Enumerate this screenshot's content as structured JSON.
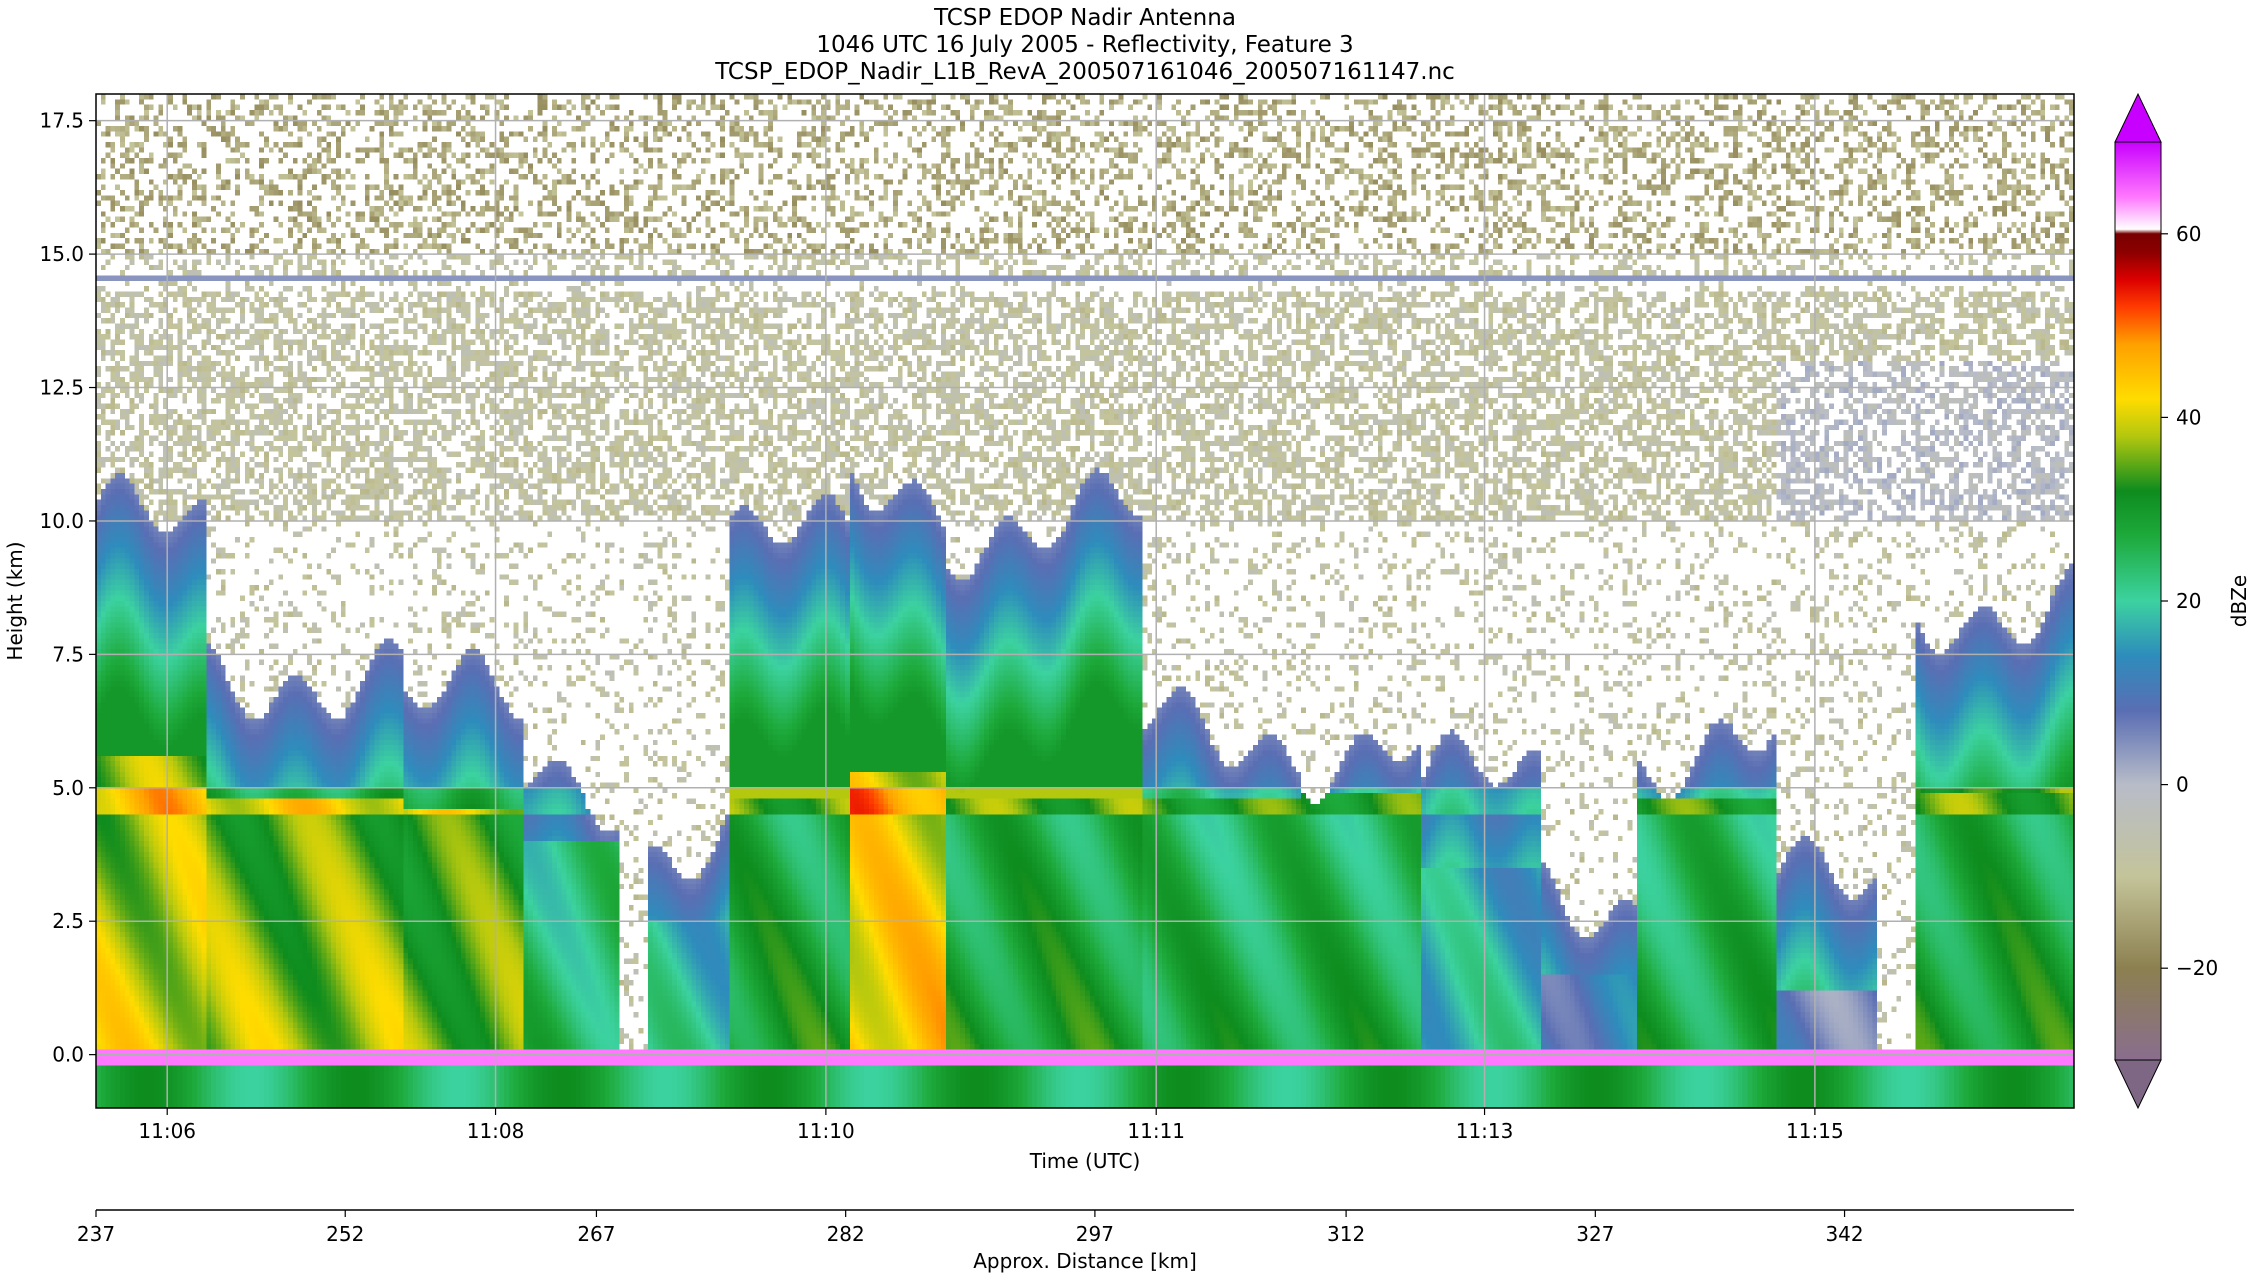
{
  "chart_data": {
    "type": "heatmap",
    "title_lines": [
      "TCSP EDOP Nadir Antenna",
      "1046 UTC 16 July 2005 - Reflectivity, Feature 3",
      "TCSP_EDOP_Nadir_L1B_RevA_200507161046_200507161147.nc"
    ],
    "xlabel": "Time (UTC)",
    "ylabel": "Height (km)",
    "xlabel2": "Approx. Distance [km]",
    "colorbar_label": "dBZe",
    "ylim": [
      -1.0,
      18.0
    ],
    "grid": true,
    "y_ticks": [
      {
        "value": 0.0,
        "label": "0.0"
      },
      {
        "value": 2.5,
        "label": "2.5"
      },
      {
        "value": 5.0,
        "label": "5.0"
      },
      {
        "value": 7.5,
        "label": "7.5"
      },
      {
        "value": 10.0,
        "label": "10.0"
      },
      {
        "value": 12.5,
        "label": "12.5"
      },
      {
        "value": 15.0,
        "label": "15.0"
      },
      {
        "value": 17.5,
        "label": "17.5"
      }
    ],
    "x_ticks": [
      {
        "value": 0.036,
        "label": "11:06"
      },
      {
        "value": 0.202,
        "label": "11:08"
      },
      {
        "value": 0.369,
        "label": "11:10"
      },
      {
        "value": 0.536,
        "label": "11:11"
      },
      {
        "value": 0.702,
        "label": "11:13"
      },
      {
        "value": 0.869,
        "label": "11:15"
      }
    ],
    "x2_ticks": [
      {
        "value": 0.0,
        "label": "237"
      },
      {
        "value": 0.126,
        "label": "252"
      },
      {
        "value": 0.253,
        "label": "267"
      },
      {
        "value": 0.379,
        "label": "282"
      },
      {
        "value": 0.505,
        "label": "297"
      },
      {
        "value": 0.632,
        "label": "312"
      },
      {
        "value": 0.758,
        "label": "327"
      },
      {
        "value": 0.884,
        "label": "342"
      }
    ],
    "colorbar": {
      "range": [
        -30,
        70
      ],
      "ticks": [
        {
          "value": -20,
          "label": "−20"
        },
        {
          "value": 0,
          "label": "0"
        },
        {
          "value": 20,
          "label": "20"
        },
        {
          "value": 40,
          "label": "40"
        },
        {
          "value": 60,
          "label": "60"
        }
      ],
      "stops": [
        {
          "value": -30,
          "color": "#8a6e8e"
        },
        {
          "value": -20,
          "color": "#8c8050"
        },
        {
          "value": -10,
          "color": "#c4c49a"
        },
        {
          "value": 0,
          "color": "#b8bcc8"
        },
        {
          "value": 8,
          "color": "#5a6eb4"
        },
        {
          "value": 14,
          "color": "#2e8cbc"
        },
        {
          "value": 20,
          "color": "#3cd2a0"
        },
        {
          "value": 27,
          "color": "#1eaa3c"
        },
        {
          "value": 32,
          "color": "#0e8c1e"
        },
        {
          "value": 38,
          "color": "#b4c80e"
        },
        {
          "value": 42,
          "color": "#ffdc00"
        },
        {
          "value": 48,
          "color": "#ffa000"
        },
        {
          "value": 52,
          "color": "#ff3c00"
        },
        {
          "value": 55,
          "color": "#dc0000"
        },
        {
          "value": 58,
          "color": "#8c0000"
        },
        {
          "value": 60,
          "color": "#780000"
        },
        {
          "value": 60.5,
          "color": "#ffffff"
        },
        {
          "value": 64,
          "color": "#ff78ff"
        },
        {
          "value": 70,
          "color": "#c800ff"
        }
      ]
    },
    "features": {
      "tropopause_line_km": 14.55,
      "melting_layer_km": 4.8,
      "surface_km": 0.0,
      "echo_columns": [
        {
          "x": 0.0,
          "w": 0.055,
          "top": 9.8,
          "core": 42,
          "core_top": 5.6
        },
        {
          "x": 0.055,
          "w": 0.1,
          "top": 7.2,
          "core": 40,
          "core_top": 4.8
        },
        {
          "x": 0.155,
          "w": 0.06,
          "top": 6.5,
          "core": 38,
          "core_top": 4.6
        },
        {
          "x": 0.215,
          "w": 0.05,
          "top": 5.2,
          "core": 28,
          "core_top": 4.0
        },
        {
          "x": 0.28,
          "w": 0.04,
          "top": 4.0,
          "core": 24,
          "core_top": 2.5
        },
        {
          "x": 0.32,
          "w": 0.06,
          "top": 9.5,
          "core": 32,
          "core_top": 4.8
        },
        {
          "x": 0.38,
          "w": 0.05,
          "top": 10.6,
          "core": 46,
          "core_top": 5.3
        },
        {
          "x": 0.43,
          "w": 0.1,
          "top": 10.0,
          "core": 32,
          "core_top": 4.8
        },
        {
          "x": 0.53,
          "w": 0.08,
          "top": 6.0,
          "core": 30,
          "core_top": 4.8
        },
        {
          "x": 0.61,
          "w": 0.06,
          "top": 5.8,
          "core": 30,
          "core_top": 4.9
        },
        {
          "x": 0.67,
          "w": 0.06,
          "top": 5.0,
          "core": 22,
          "core_top": 3.5
        },
        {
          "x": 0.73,
          "w": 0.05,
          "top": 3.0,
          "core": 16,
          "core_top": 1.5
        },
        {
          "x": 0.78,
          "w": 0.07,
          "top": 5.8,
          "core": 30,
          "core_top": 4.8
        },
        {
          "x": 0.85,
          "w": 0.05,
          "top": 3.0,
          "core": 12,
          "core_top": 1.2
        },
        {
          "x": 0.92,
          "w": 0.08,
          "top": 8.5,
          "core": 32,
          "core_top": 4.9
        }
      ]
    }
  }
}
